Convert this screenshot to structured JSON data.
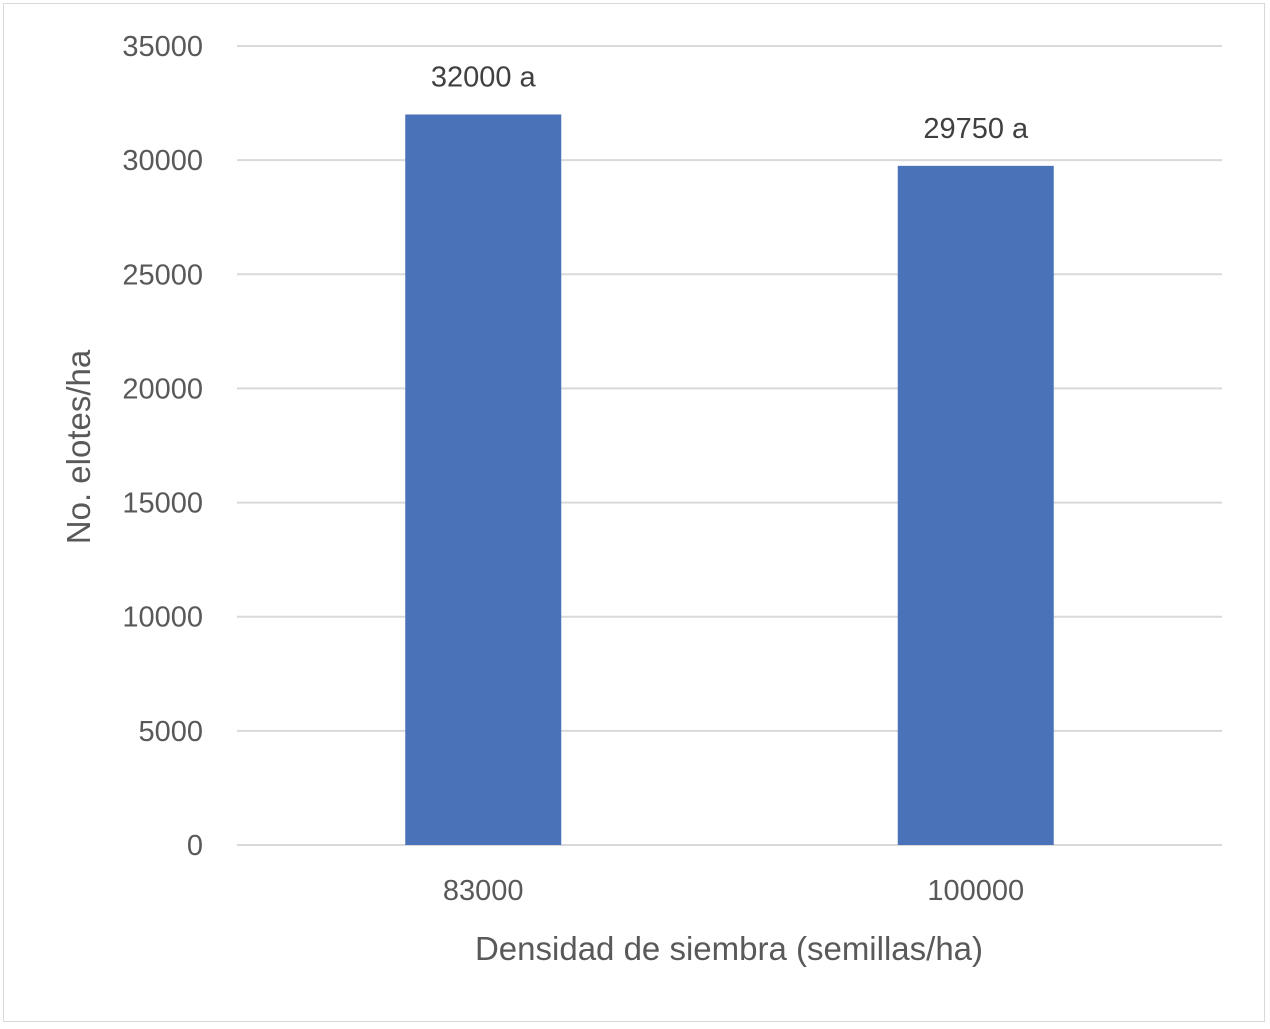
{
  "chart_data": {
    "type": "bar",
    "categories": [
      "83000",
      "100000"
    ],
    "series": [
      {
        "values": [
          32000,
          29750
        ],
        "data_labels": [
          "32000 a",
          "29750 a"
        ],
        "color": "#4a72b8"
      }
    ],
    "xlabel": "Densidad de siembra (semillas/ha)",
    "ylabel": "No. elotes/ha",
    "ylim": [
      0,
      35000
    ],
    "yticks": [
      "0",
      "5000",
      "10000",
      "15000",
      "20000",
      "25000",
      "30000",
      "35000"
    ],
    "grid": true,
    "legend": "none",
    "gridline_color": "#d9d9d9",
    "text_color": "#595959"
  }
}
